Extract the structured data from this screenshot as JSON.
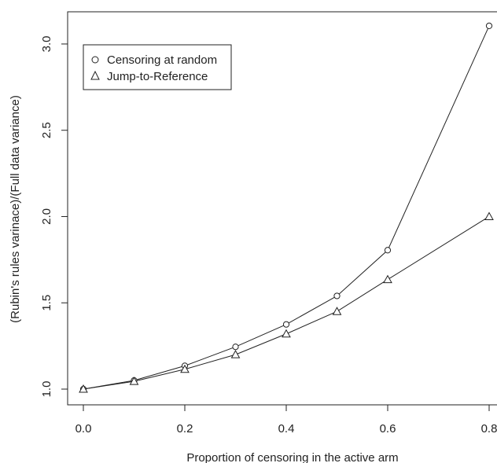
{
  "chart_data": {
    "type": "line",
    "title": "",
    "xlabel": "Proportion of censoring in the active arm",
    "ylabel": "(Rubin's rules varinace)/(Full data variance)",
    "xlim": [
      0.0,
      0.8
    ],
    "ylim": [
      1.0,
      3.1
    ],
    "x_ticks": [
      "0.0",
      "0.2",
      "0.4",
      "0.6",
      "0.8"
    ],
    "x_tick_values": [
      0.0,
      0.2,
      0.4,
      0.6,
      0.8
    ],
    "y_ticks": [
      "1.0",
      "1.5",
      "2.0",
      "2.5",
      "3.0"
    ],
    "y_tick_values": [
      1.0,
      1.5,
      2.0,
      2.5,
      3.0
    ],
    "grid": false,
    "legend_position": "top-left",
    "x": [
      0.0,
      0.1,
      0.2,
      0.3,
      0.4,
      0.5,
      0.6,
      0.8
    ],
    "series": [
      {
        "name": "Censoring at random",
        "marker": "circle",
        "values": [
          1.0,
          1.05,
          1.135,
          1.245,
          1.375,
          1.54,
          1.805,
          3.105
        ]
      },
      {
        "name": "Jump-to-Reference",
        "marker": "triangle",
        "values": [
          1.0,
          1.045,
          1.115,
          1.2,
          1.32,
          1.45,
          1.635,
          2.0
        ]
      }
    ],
    "colors": {
      "line": "#222222",
      "axis": "#222222",
      "background": "#ffffff"
    }
  }
}
